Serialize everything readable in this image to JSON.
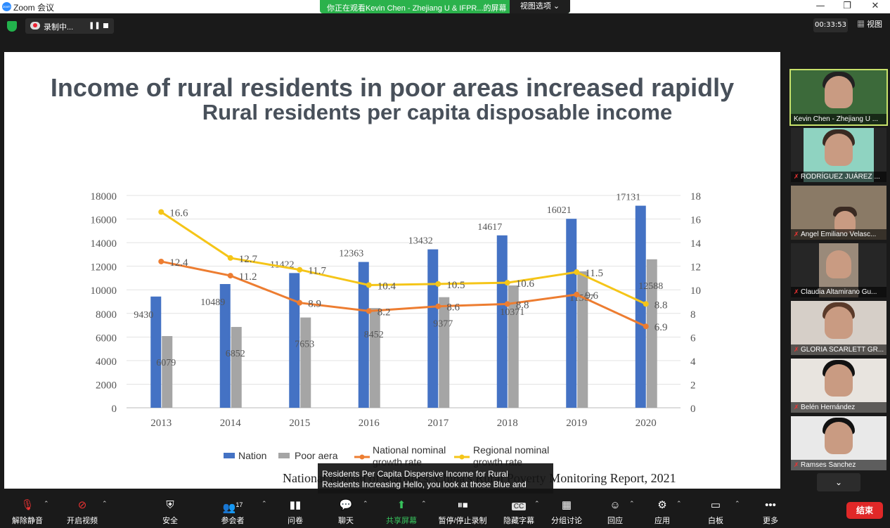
{
  "window": {
    "app_title": "Zoom 会议",
    "logo_text": "zoom",
    "share_banner": "你正在观看Kevin Chen - Zhejiang U & IFPR...的屏幕",
    "view_options": "视图选项 ⌄",
    "minimize": "—",
    "restore": "❐",
    "close": "✕"
  },
  "topbar": {
    "recording_label": "录制中...",
    "pause": "❚❚",
    "timer": "00:33:53",
    "view_label": "视图"
  },
  "slide": {
    "title": "Income of rural residents in poor areas increased rapidly",
    "source": "National Bureau of Statistics, China's Rural Poverty Monitoring Report, 2021"
  },
  "chart_data": {
    "type": "bar",
    "title": "Rural residents per capita disposable income",
    "categories": [
      "2013",
      "2014",
      "2015",
      "2016",
      "2017",
      "2018",
      "2019",
      "2020"
    ],
    "series": [
      {
        "name": "Nation",
        "type": "bar",
        "axis": "left",
        "color": "#4472c4",
        "values": [
          9430,
          10489,
          11422,
          12363,
          13432,
          14617,
          16021,
          17131
        ]
      },
      {
        "name": "Poor aera",
        "type": "bar",
        "axis": "left",
        "color": "#a5a5a5",
        "values": [
          6079,
          6852,
          7653,
          8452,
          9377,
          10371,
          11567,
          12588
        ]
      },
      {
        "name": "National nominal growth rate",
        "type": "line",
        "axis": "right",
        "color": "#ed7d31",
        "values": [
          12.4,
          11.2,
          8.9,
          8.2,
          8.6,
          8.8,
          9.6,
          6.9
        ]
      },
      {
        "name": "Regional nominal growth rate",
        "type": "line",
        "axis": "right",
        "color": "#f5c518",
        "values": [
          16.6,
          12.7,
          11.7,
          10.4,
          10.5,
          10.6,
          11.5,
          8.8
        ]
      }
    ],
    "y_left": {
      "min": 0,
      "max": 18000,
      "ticks": [
        "0",
        "2000",
        "4000",
        "6000",
        "8000",
        "10000",
        "12000",
        "14000",
        "16000",
        "18000"
      ]
    },
    "y_right": {
      "min": 0,
      "max": 18,
      "ticks": [
        "0",
        "2",
        "4",
        "6",
        "8",
        "10",
        "12",
        "14",
        "16",
        "18"
      ]
    },
    "grid": true,
    "legend_position": "bottom",
    "legend": {
      "nation": "Nation",
      "poor": "Poor aera",
      "national_rate_1": "National nominal",
      "national_rate_2": "growth rate",
      "regional_rate_1": "Regional nominal",
      "regional_rate_2": "growth rate"
    }
  },
  "caption": {
    "line1": "Residents Per Capita Dispersive Income for Rural",
    "line2": "Residents Increasing Hello, you look at those Blue and"
  },
  "participants": [
    {
      "name": "Kevin Chen - Zhejiang U ...",
      "muted": false,
      "active": true
    },
    {
      "name": "RODRÍGUEZ JUÁREZ ...",
      "muted": true
    },
    {
      "name": "Angel Emiliano Velasc...",
      "muted": true
    },
    {
      "name": "Claudia Altamirano Gu...",
      "muted": true
    },
    {
      "name": "GLORIA SCARLETT GR...",
      "muted": true
    },
    {
      "name": "Belén Hernández",
      "muted": true
    },
    {
      "name": "Ramses Sanchez",
      "muted": true
    }
  ],
  "gallery_down": "⌄",
  "toolbar": {
    "unmute": "解除静音",
    "start_video": "开启视频",
    "security": "安全",
    "participants": "参会者",
    "participants_count": "17",
    "polls": "问卷",
    "chat": "聊天",
    "share_screen": "共享屏幕",
    "pause_stop_record": "暂停/停止录制",
    "hide_captions": "隐藏字幕",
    "breakout": "分组讨论",
    "reactions": "回应",
    "apps": "应用",
    "whiteboard": "白板",
    "more": "更多",
    "end": "结束",
    "caret": "⌃",
    "cc": "CC"
  }
}
